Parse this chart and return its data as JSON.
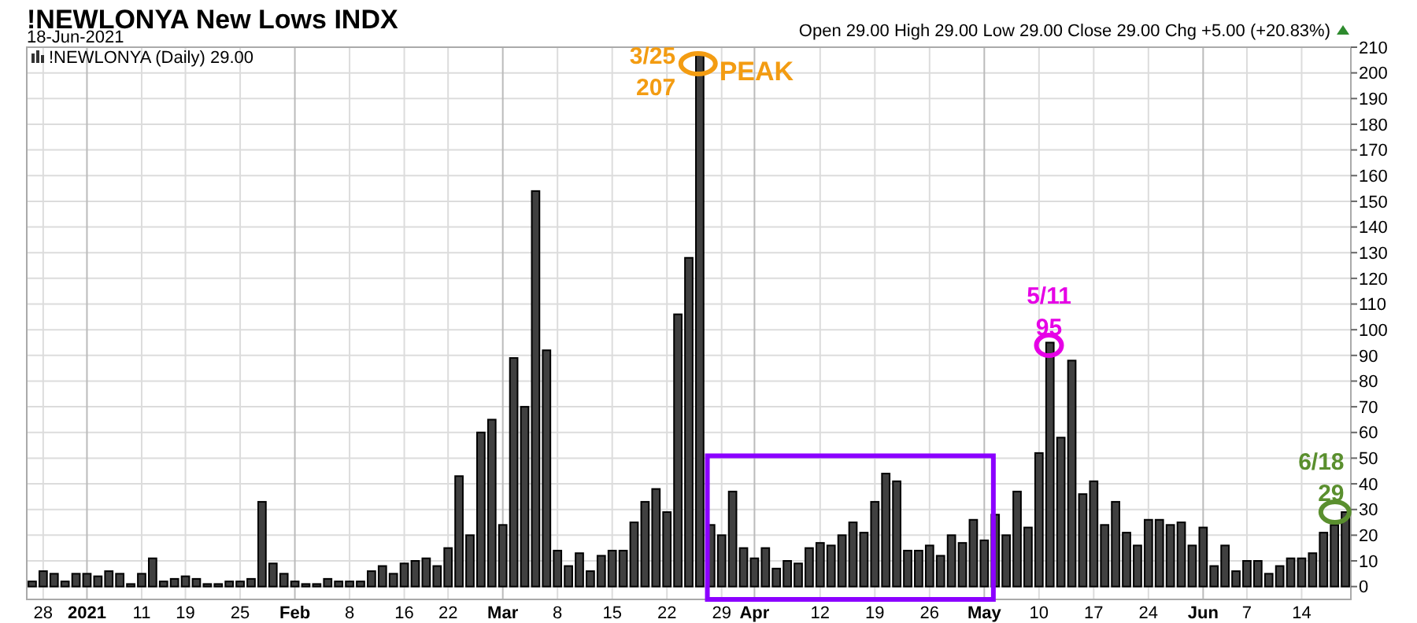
{
  "chart_data": {
    "type": "bar",
    "title": "!NEWLONYA New Lows INDX",
    "subtitle": "18-Jun-2021",
    "categories": [
      null,
      "28",
      null,
      null,
      null,
      "2021",
      null,
      null,
      null,
      null,
      "11",
      null,
      null,
      null,
      "19",
      null,
      null,
      null,
      null,
      "25",
      null,
      null,
      null,
      null,
      "Feb",
      null,
      null,
      null,
      null,
      "8",
      null,
      null,
      null,
      null,
      "16",
      null,
      null,
      null,
      "22",
      null,
      null,
      null,
      null,
      "Mar",
      null,
      null,
      null,
      null,
      "8",
      null,
      null,
      null,
      null,
      "15",
      null,
      null,
      null,
      null,
      "22",
      null,
      null,
      null,
      null,
      "29",
      null,
      null,
      "Apr",
      null,
      null,
      null,
      null,
      null,
      "12",
      null,
      null,
      null,
      null,
      "19",
      null,
      null,
      null,
      null,
      "26",
      null,
      null,
      null,
      null,
      "May",
      null,
      null,
      null,
      null,
      "10",
      null,
      null,
      null,
      null,
      "17",
      null,
      null,
      null,
      null,
      "24",
      null,
      null,
      null,
      null,
      "Jun",
      null,
      null,
      null,
      "7",
      null,
      null,
      null,
      null,
      "14",
      null,
      null,
      null,
      null
    ],
    "values": [
      2,
      6,
      5,
      2,
      5,
      5,
      4,
      6,
      5,
      1,
      5,
      11,
      2,
      3,
      4,
      3,
      1,
      1,
      2,
      2,
      3,
      33,
      9,
      5,
      2,
      1,
      1,
      3,
      2,
      2,
      2,
      6,
      8,
      5,
      9,
      10,
      11,
      8,
      15,
      43,
      20,
      60,
      65,
      24,
      89,
      70,
      154,
      92,
      14,
      8,
      13,
      6,
      12,
      14,
      14,
      25,
      33,
      38,
      29,
      106,
      128,
      207,
      24,
      20,
      37,
      15,
      11,
      15,
      7,
      10,
      9,
      15,
      17,
      16,
      20,
      25,
      21,
      33,
      44,
      41,
      14,
      14,
      16,
      12,
      20,
      17,
      26,
      18,
      28,
      20,
      37,
      23,
      52,
      95,
      58,
      88,
      36,
      41,
      24,
      33,
      21,
      16,
      26,
      26,
      24,
      25,
      16,
      23,
      8,
      16,
      6,
      10,
      10,
      5,
      8,
      11,
      11,
      13,
      21,
      24,
      29
    ],
    "color": "#404040",
    "ylim": [
      -5,
      210
    ],
    "yticks": [
      0,
      10,
      20,
      30,
      40,
      50,
      60,
      70,
      80,
      90,
      100,
      110,
      120,
      130,
      140,
      150,
      160,
      170,
      180,
      190,
      200,
      210
    ],
    "grid": true,
    "annotations": [
      "3/25\n207",
      "PEAK",
      "5/11\n95",
      "6/18\n29",
      "!NEWLONYA (Daily) 29.00",
      "Open 29.00  High 29.00  Low 29.00  Close 29.00  Chg +5.00 (+20.83%)"
    ]
  }
}
